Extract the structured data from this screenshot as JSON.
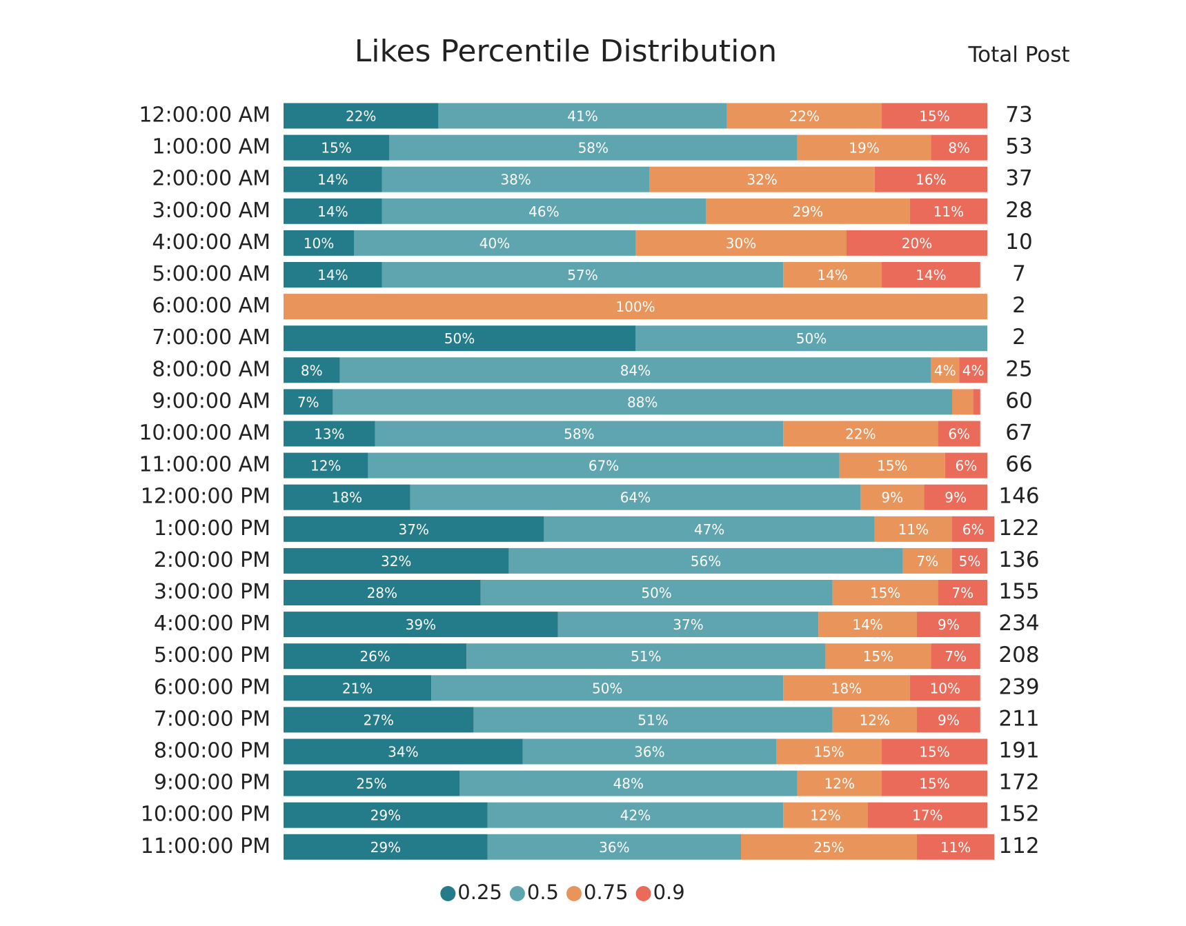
{
  "chart_data": {
    "type": "stacked-bar-100",
    "title": "Likes Percentile Distribution",
    "totals_title": "Total Post",
    "categories": [
      "12:00:00 AM",
      "1:00:00 AM",
      "2:00:00 AM",
      "3:00:00 AM",
      "4:00:00 AM",
      "5:00:00 AM",
      "6:00:00 AM",
      "7:00:00 AM",
      "8:00:00 AM",
      "9:00:00 AM",
      "10:00:00 AM",
      "11:00:00 AM",
      "12:00:00 PM",
      "1:00:00 PM",
      "2:00:00 PM",
      "3:00:00 PM",
      "4:00:00 PM",
      "5:00:00 PM",
      "6:00:00 PM",
      "7:00:00 PM",
      "8:00:00 PM",
      "9:00:00 PM",
      "10:00:00 PM",
      "11:00:00 PM"
    ],
    "xlim": [
      0,
      100
    ],
    "series": [
      {
        "name": "0.25",
        "color": "#247b8a",
        "values": [
          22,
          15,
          14,
          14,
          10,
          14,
          0,
          50,
          8,
          7,
          13,
          12,
          18,
          37,
          32,
          28,
          39,
          26,
          21,
          27,
          34,
          25,
          29,
          29
        ],
        "value_labels": [
          "22%",
          "15%",
          "14%",
          "14%",
          "10%",
          "14%",
          null,
          "50%",
          "8%",
          "7%",
          "13%",
          "12%",
          "18%",
          "37%",
          "32%",
          "28%",
          "39%",
          "26%",
          "21%",
          "27%",
          "34%",
          "25%",
          "29%",
          "29%"
        ]
      },
      {
        "name": "0.5",
        "color": "#5fa5af",
        "values": [
          41,
          58,
          38,
          46,
          40,
          57,
          0,
          50,
          84,
          88,
          58,
          67,
          64,
          47,
          56,
          50,
          37,
          51,
          50,
          51,
          36,
          48,
          42,
          36
        ],
        "value_labels": [
          "41%",
          "58%",
          "38%",
          "46%",
          "40%",
          "57%",
          null,
          "50%",
          "84%",
          "88%",
          "58%",
          "67%",
          "64%",
          "47%",
          "56%",
          "50%",
          "37%",
          "51%",
          "50%",
          "51%",
          "36%",
          "48%",
          "42%",
          "36%"
        ]
      },
      {
        "name": "0.75",
        "color": "#e8945b",
        "values": [
          22,
          19,
          32,
          29,
          30,
          14,
          100,
          0,
          4,
          3,
          22,
          15,
          9,
          11,
          7,
          15,
          14,
          15,
          18,
          12,
          15,
          12,
          12,
          25
        ],
        "value_labels": [
          "22%",
          "19%",
          "32%",
          "29%",
          "30%",
          "14%",
          "100%",
          null,
          "4%",
          null,
          "22%",
          "15%",
          "9%",
          "11%",
          "7%",
          "15%",
          "14%",
          "15%",
          "18%",
          "12%",
          "15%",
          "12%",
          "12%",
          "25%"
        ]
      },
      {
        "name": "0.9",
        "color": "#eb6b5b",
        "values": [
          15,
          8,
          16,
          11,
          20,
          14,
          0,
          0,
          4,
          1,
          6,
          6,
          9,
          6,
          5,
          7,
          9,
          7,
          10,
          9,
          15,
          15,
          17,
          11
        ],
        "value_labels": [
          "15%",
          "8%",
          "16%",
          "11%",
          "20%",
          "14%",
          null,
          null,
          "4%",
          null,
          "6%",
          "6%",
          "9%",
          "6%",
          "5%",
          "7%",
          "9%",
          "7%",
          "10%",
          "9%",
          "15%",
          "15%",
          "17%",
          "11%"
        ]
      }
    ],
    "totals": [
      73,
      53,
      37,
      28,
      10,
      7,
      2,
      2,
      25,
      60,
      67,
      66,
      146,
      122,
      136,
      155,
      234,
      208,
      239,
      211,
      191,
      172,
      152,
      112
    ],
    "legend": "bottom"
  }
}
